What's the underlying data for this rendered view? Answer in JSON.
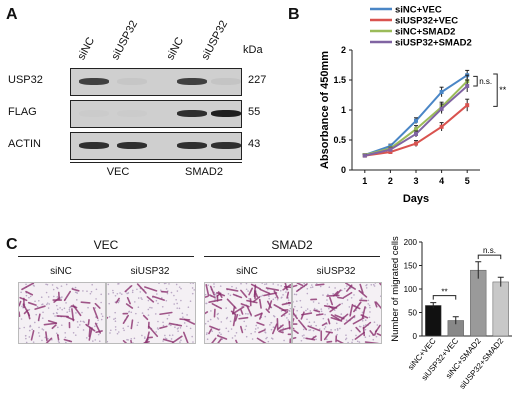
{
  "panel_a": {
    "letter": "A",
    "lanes": [
      "siNC",
      "siUSP32",
      "siNC",
      "siUSP32"
    ],
    "kda_header": "kDa",
    "rows": [
      {
        "label": "USP32",
        "kda": "227",
        "bands": [
          0.85,
          0.15,
          0.85,
          0.2
        ]
      },
      {
        "label": "FLAG",
        "kda": "55",
        "bands": [
          0.05,
          0.05,
          0.9,
          0.95
        ]
      },
      {
        "label": "ACTIN",
        "kda": "43",
        "bands": [
          0.9,
          0.9,
          0.9,
          0.9
        ]
      }
    ],
    "groups": [
      "VEC",
      "SMAD2"
    ]
  },
  "panel_b": {
    "letter": "B",
    "chart_data": {
      "type": "line",
      "xlabel": "Days",
      "ylabel": "Absorbance of 450mm",
      "x": [
        1,
        2,
        3,
        4,
        5
      ],
      "xlim": [
        0.5,
        5.5
      ],
      "ylim": [
        0,
        2
      ],
      "yticks": [
        "0",
        "0.5",
        "1",
        "1.5",
        "2"
      ],
      "xticks": [
        "1",
        "2",
        "3",
        "4",
        "5"
      ],
      "legend_position": "top-left",
      "series": [
        {
          "name": "siNC+VEC",
          "color": "#4a86c6",
          "values": [
            0.25,
            0.4,
            0.82,
            1.3,
            1.58
          ],
          "errors": [
            0.02,
            0.03,
            0.05,
            0.08,
            0.08
          ]
        },
        {
          "name": "siUSP32+VEC",
          "color": "#d9534f",
          "values": [
            0.24,
            0.3,
            0.44,
            0.72,
            1.08
          ],
          "errors": [
            0.02,
            0.03,
            0.05,
            0.07,
            0.1
          ]
        },
        {
          "name": "siNC+SMAD2",
          "color": "#9bbb59",
          "values": [
            0.25,
            0.36,
            0.68,
            1.05,
            1.48
          ],
          "errors": [
            0.02,
            0.03,
            0.06,
            0.08,
            0.1
          ]
        },
        {
          "name": "siUSP32+SMAD2",
          "color": "#8064a2",
          "values": [
            0.24,
            0.34,
            0.6,
            1.02,
            1.4
          ],
          "errors": [
            0.02,
            0.03,
            0.05,
            0.08,
            0.1
          ]
        }
      ],
      "annotations": [
        "n.s.",
        "**"
      ]
    }
  },
  "panel_c": {
    "letter": "C",
    "groups": [
      {
        "label": "VEC",
        "images": [
          "siNC",
          "siUSP32"
        ]
      },
      {
        "label": "SMAD2",
        "images": [
          "siNC",
          "siUSP32"
        ]
      }
    ],
    "chart_data": {
      "type": "bar",
      "ylabel": "Number of migrated cells",
      "categories": [
        "siNC+VEC",
        "siUSP32+VEC",
        "siNC+SMAD2",
        "siUSP32+SMAD2"
      ],
      "values": [
        65,
        33,
        140,
        115
      ],
      "errors": [
        6,
        8,
        18,
        10
      ],
      "colors": [
        "#111111",
        "#888888",
        "#9a9a9a",
        "#c8c8c8"
      ],
      "ylim": [
        0,
        200
      ],
      "yticks": [
        "0",
        "50",
        "100",
        "150",
        "200"
      ],
      "annotations": [
        "**",
        "n.s."
      ]
    }
  }
}
